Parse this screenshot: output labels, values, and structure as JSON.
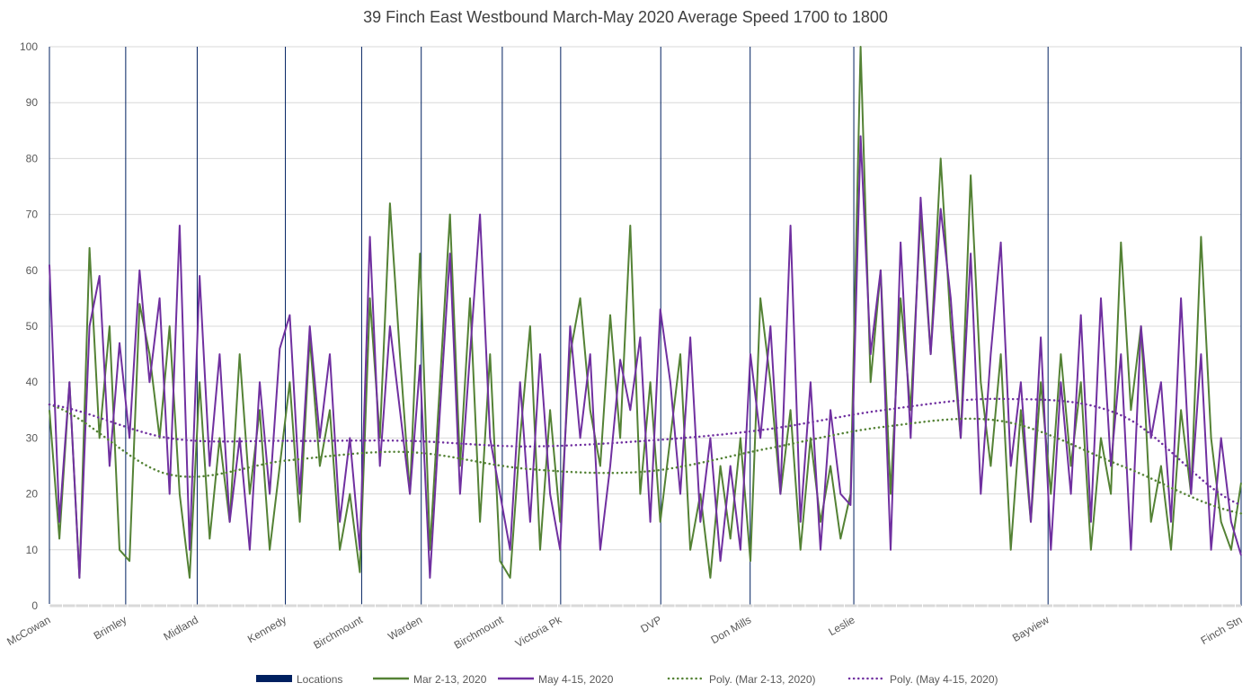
{
  "chart_data": {
    "type": "line",
    "title": "39 Finch East Westbound March-May 2020 Average Speed 1700 to 1800",
    "xlabel": "",
    "ylabel": "",
    "ylim": [
      0,
      100
    ],
    "yticks": [
      0,
      10,
      20,
      30,
      40,
      50,
      60,
      70,
      80,
      90,
      100
    ],
    "grid": true,
    "legend_position": "bottom",
    "x_range": [
      0,
      1000
    ],
    "locations": [
      {
        "name": "McCowan",
        "x": 0
      },
      {
        "name": "Brimley",
        "x": 64
      },
      {
        "name": "Midland",
        "x": 124
      },
      {
        "name": "Kennedy",
        "x": 198
      },
      {
        "name": "Birchmount",
        "x": 262
      },
      {
        "name": "Warden",
        "x": 312
      },
      {
        "name": "Birchmount",
        "x": 380
      },
      {
        "name": "Victoria Pk",
        "x": 429
      },
      {
        "name": "DVP",
        "x": 513
      },
      {
        "name": "Don Mills",
        "x": 588
      },
      {
        "name": "Leslie",
        "x": 675
      },
      {
        "name": "Bayview",
        "x": 838
      },
      {
        "name": "Finch Stn",
        "x": 1000
      }
    ],
    "series": [
      {
        "name": "Mar 2-13, 2020",
        "color": "#548235",
        "style": "solid",
        "values": [
          35,
          12,
          40,
          5,
          64,
          30,
          50,
          10,
          8,
          54,
          45,
          30,
          50,
          20,
          5,
          40,
          12,
          30,
          15,
          45,
          20,
          35,
          10,
          25,
          40,
          15,
          48,
          25,
          35,
          10,
          20,
          6,
          55,
          30,
          72,
          45,
          20,
          63,
          10,
          40,
          70,
          25,
          55,
          15,
          45,
          8,
          5,
          30,
          50,
          10,
          35,
          15,
          45,
          55,
          35,
          25,
          52,
          30,
          68,
          20,
          40,
          15,
          30,
          45,
          10,
          20,
          5,
          25,
          12,
          30,
          8,
          55,
          40,
          20,
          35,
          10,
          30,
          15,
          25,
          12,
          20,
          100,
          40,
          60,
          20,
          55,
          35,
          70,
          45,
          80,
          50,
          30,
          77,
          40,
          25,
          45,
          10,
          35,
          15,
          40,
          20,
          45,
          25,
          40,
          10,
          30,
          20,
          65,
          35,
          50,
          15,
          25,
          10,
          35,
          20,
          66,
          30,
          15,
          10,
          22
        ]
      },
      {
        "name": "May 4-15, 2020",
        "color": "#7030A0",
        "style": "solid",
        "values": [
          61,
          15,
          40,
          5,
          50,
          59,
          25,
          47,
          30,
          60,
          40,
          55,
          20,
          68,
          10,
          59,
          25,
          45,
          15,
          30,
          10,
          40,
          20,
          46,
          52,
          20,
          50,
          30,
          45,
          15,
          30,
          10,
          66,
          25,
          50,
          35,
          20,
          43,
          5,
          35,
          63,
          20,
          45,
          70,
          30,
          20,
          10,
          40,
          15,
          45,
          20,
          10,
          50,
          30,
          45,
          10,
          25,
          44,
          35,
          48,
          15,
          53,
          40,
          20,
          48,
          15,
          30,
          8,
          25,
          10,
          45,
          30,
          50,
          20,
          68,
          15,
          40,
          10,
          35,
          20,
          18,
          84,
          45,
          60,
          10,
          65,
          30,
          73,
          45,
          71,
          55,
          30,
          63,
          20,
          45,
          65,
          25,
          40,
          15,
          48,
          10,
          40,
          20,
          52,
          15,
          55,
          25,
          45,
          10,
          50,
          30,
          40,
          15,
          55,
          20,
          45,
          10,
          30,
          15,
          9
        ]
      },
      {
        "name": "Poly. (Mar 2-13, 2020)",
        "color": "#548235",
        "style": "dotted",
        "values": [
          36,
          23.5,
          26,
          27.5,
          24.5,
          24,
          28,
          32,
          33,
          25,
          16.5
        ]
      },
      {
        "name": "Poly. (May 4-15, 2020)",
        "color": "#7030A0",
        "style": "dotted",
        "values": [
          36,
          30,
          29.5,
          29.5,
          28.5,
          29.5,
          31.5,
          35,
          37,
          34,
          18
        ]
      }
    ],
    "legend": [
      {
        "label": "Locations",
        "color": "#002060",
        "kind": "bar"
      },
      {
        "label": "Mar 2-13, 2020",
        "color": "#548235",
        "kind": "line"
      },
      {
        "label": "May 4-15, 2020",
        "color": "#7030A0",
        "kind": "line"
      },
      {
        "label": "Poly. (Mar 2-13, 2020)",
        "color": "#548235",
        "kind": "dotted"
      },
      {
        "label": "Poly. (May 4-15, 2020)",
        "color": "#7030A0",
        "kind": "dotted"
      }
    ]
  }
}
